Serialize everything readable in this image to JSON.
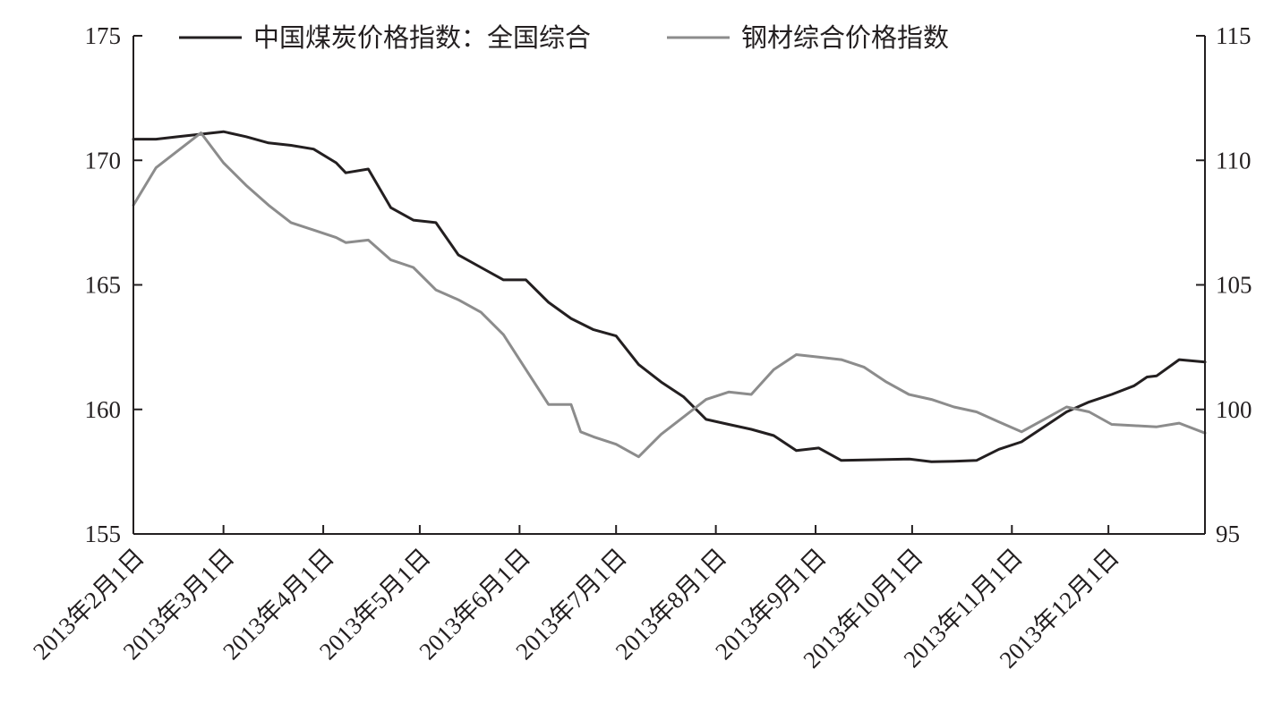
{
  "chart_data": {
    "type": "line",
    "title": "",
    "legend_position": "top",
    "grid": false,
    "x_axis": {
      "ticks": [
        "2013-02-01",
        "2013-03-01",
        "2013-04-01",
        "2013-05-01",
        "2013-06-01",
        "2013-07-01",
        "2013-08-01",
        "2013-09-01",
        "2013-10-01",
        "2013-11-01",
        "2013-12-01"
      ],
      "tick_labels": [
        "2013年2月1日",
        "2013年3月1日",
        "2013年4月1日",
        "2013年5月1日",
        "2013年6月1日",
        "2013年7月1日",
        "2013年8月1日",
        "2013年9月1日",
        "2013年10月1日",
        "2013年11月1日",
        "2013年12月1日"
      ],
      "range": [
        "2013-02-01",
        "2013-12-31"
      ]
    },
    "y_left": {
      "range": [
        155,
        175
      ],
      "ticks": [
        155,
        160,
        165,
        170,
        175
      ]
    },
    "y_right": {
      "range": [
        95,
        115
      ],
      "ticks": [
        95,
        100,
        105,
        110,
        115
      ]
    },
    "series": [
      {
        "name": "中国煤炭价格指数：全国综合",
        "axis": "left",
        "color": "#231f20",
        "points": [
          [
            "2013-02-01",
            170.85
          ],
          [
            "2013-02-08",
            170.85
          ],
          [
            "2013-02-15",
            170.95
          ],
          [
            "2013-02-22",
            171.05
          ],
          [
            "2013-03-01",
            171.15
          ],
          [
            "2013-03-08",
            170.95
          ],
          [
            "2013-03-15",
            170.7
          ],
          [
            "2013-03-22",
            170.6
          ],
          [
            "2013-03-29",
            170.45
          ],
          [
            "2013-04-05",
            169.9
          ],
          [
            "2013-04-08",
            169.5
          ],
          [
            "2013-04-15",
            169.65
          ],
          [
            "2013-04-22",
            168.1
          ],
          [
            "2013-04-29",
            167.6
          ],
          [
            "2013-05-06",
            167.5
          ],
          [
            "2013-05-13",
            166.2
          ],
          [
            "2013-05-20",
            165.7
          ],
          [
            "2013-05-27",
            165.2
          ],
          [
            "2013-06-03",
            165.2
          ],
          [
            "2013-06-10",
            164.3
          ],
          [
            "2013-06-17",
            163.65
          ],
          [
            "2013-06-24",
            163.2
          ],
          [
            "2013-07-01",
            162.95
          ],
          [
            "2013-07-08",
            161.8
          ],
          [
            "2013-07-15",
            161.1
          ],
          [
            "2013-07-22",
            160.5
          ],
          [
            "2013-07-29",
            159.6
          ],
          [
            "2013-08-05",
            159.4
          ],
          [
            "2013-08-12",
            159.2
          ],
          [
            "2013-08-19",
            158.95
          ],
          [
            "2013-08-26",
            158.35
          ],
          [
            "2013-09-02",
            158.45
          ],
          [
            "2013-09-09",
            157.95
          ],
          [
            "2013-09-16",
            157.97
          ],
          [
            "2013-09-23",
            157.99
          ],
          [
            "2013-09-30",
            158.01
          ],
          [
            "2013-10-07",
            157.9
          ],
          [
            "2013-10-14",
            157.92
          ],
          [
            "2013-10-21",
            157.95
          ],
          [
            "2013-10-28",
            158.4
          ],
          [
            "2013-11-04",
            158.7
          ],
          [
            "2013-11-11",
            159.3
          ],
          [
            "2013-11-18",
            159.9
          ],
          [
            "2013-11-25",
            160.3
          ],
          [
            "2013-12-02",
            160.6
          ],
          [
            "2013-12-09",
            160.95
          ],
          [
            "2013-12-13",
            161.3
          ],
          [
            "2013-12-16",
            161.35
          ],
          [
            "2013-12-23",
            162.0
          ],
          [
            "2013-12-31",
            161.9
          ]
        ]
      },
      {
        "name": "钢材综合价格指数",
        "axis": "right",
        "color": "#8c8c8c",
        "points": [
          [
            "2013-02-01",
            108.2
          ],
          [
            "2013-02-08",
            109.7
          ],
          [
            "2013-02-15",
            110.4
          ],
          [
            "2013-02-22",
            111.1
          ],
          [
            "2013-03-01",
            109.9
          ],
          [
            "2013-03-08",
            109.0
          ],
          [
            "2013-03-15",
            108.2
          ],
          [
            "2013-03-22",
            107.5
          ],
          [
            "2013-03-29",
            107.2
          ],
          [
            "2013-04-05",
            106.9
          ],
          [
            "2013-04-08",
            106.7
          ],
          [
            "2013-04-15",
            106.8
          ],
          [
            "2013-04-22",
            106.0
          ],
          [
            "2013-04-29",
            105.7
          ],
          [
            "2013-05-06",
            104.8
          ],
          [
            "2013-05-13",
            104.4
          ],
          [
            "2013-05-20",
            103.9
          ],
          [
            "2013-05-27",
            103.0
          ],
          [
            "2013-06-03",
            101.6
          ],
          [
            "2013-06-10",
            100.2
          ],
          [
            "2013-06-17",
            100.2
          ],
          [
            "2013-06-20",
            99.1
          ],
          [
            "2013-06-24",
            98.9
          ],
          [
            "2013-07-01",
            98.6
          ],
          [
            "2013-07-08",
            98.1
          ],
          [
            "2013-07-15",
            99.0
          ],
          [
            "2013-07-22",
            99.7
          ],
          [
            "2013-07-29",
            100.4
          ],
          [
            "2013-08-05",
            100.7
          ],
          [
            "2013-08-12",
            100.6
          ],
          [
            "2013-08-19",
            101.6
          ],
          [
            "2013-08-26",
            102.2
          ],
          [
            "2013-09-02",
            102.1
          ],
          [
            "2013-09-09",
            102.0
          ],
          [
            "2013-09-16",
            101.7
          ],
          [
            "2013-09-23",
            101.1
          ],
          [
            "2013-09-30",
            100.6
          ],
          [
            "2013-10-07",
            100.4
          ],
          [
            "2013-10-14",
            100.1
          ],
          [
            "2013-10-21",
            99.9
          ],
          [
            "2013-10-28",
            99.5
          ],
          [
            "2013-11-04",
            99.1
          ],
          [
            "2013-11-11",
            99.6
          ],
          [
            "2013-11-18",
            100.1
          ],
          [
            "2013-11-25",
            99.9
          ],
          [
            "2013-12-02",
            99.4
          ],
          [
            "2013-12-09",
            99.35
          ],
          [
            "2013-12-16",
            99.3
          ],
          [
            "2013-12-23",
            99.45
          ],
          [
            "2013-12-31",
            99.05
          ]
        ]
      }
    ]
  }
}
